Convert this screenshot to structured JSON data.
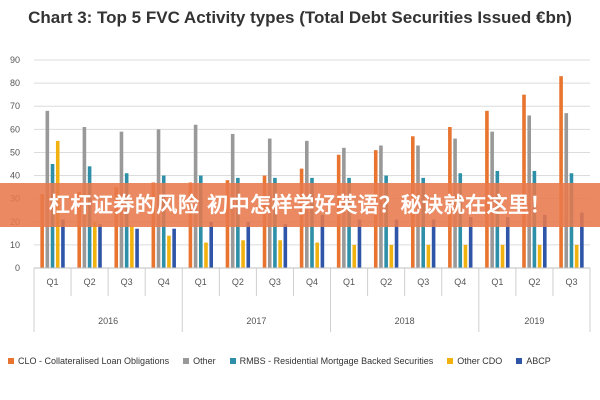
{
  "banner": {
    "text": "杠杆证券的风险 初中怎样学好英语？秘诀就在这里！"
  },
  "chart_data": {
    "type": "bar",
    "title": "Chart 3: Top 5 FVC Activity types (Total Debt Securities Issued €bn)",
    "xlabel": "",
    "ylabel": "",
    "ylim": [
      0,
      90
    ],
    "y_ticks": [
      0,
      10,
      20,
      30,
      40,
      50,
      60,
      70,
      80,
      90
    ],
    "grid": true,
    "legend_position": "bottom",
    "categories": [
      "Q1",
      "Q2",
      "Q3",
      "Q4",
      "Q1",
      "Q2",
      "Q3",
      "Q4",
      "Q1",
      "Q2",
      "Q3",
      "Q4",
      "Q1",
      "Q2",
      "Q3"
    ],
    "groups": [
      {
        "label": "2016",
        "count": 4
      },
      {
        "label": "2017",
        "count": 4
      },
      {
        "label": "2018",
        "count": 4
      },
      {
        "label": "2019",
        "count": 3
      }
    ],
    "series": [
      {
        "name": "CLO - Collateralised Loan Obligations",
        "color": "#e8742f",
        "values": [
          32,
          33,
          35,
          37,
          37,
          38,
          40,
          43,
          49,
          51,
          57,
          61,
          68,
          75,
          83
        ]
      },
      {
        "name": "Other",
        "color": "#999999",
        "values": [
          68,
          61,
          59,
          60,
          62,
          58,
          56,
          55,
          52,
          53,
          53,
          56,
          59,
          66,
          67
        ]
      },
      {
        "name": "RMBS - Residential Mortgage Backed Securities",
        "color": "#2e8fa8",
        "values": [
          45,
          44,
          41,
          40,
          40,
          39,
          39,
          39,
          39,
          40,
          39,
          41,
          42,
          42,
          41
        ]
      },
      {
        "name": "Other CDO",
        "color": "#f1b20f",
        "values": [
          55,
          20,
          18,
          14,
          11,
          12,
          12,
          11,
          10,
          10,
          10,
          10,
          10,
          10,
          10
        ]
      },
      {
        "name": "ABCP",
        "color": "#2f55a8",
        "values": [
          21,
          19,
          17,
          17,
          20,
          20,
          19,
          23,
          21,
          21,
          21,
          22,
          22,
          23,
          24
        ]
      }
    ]
  }
}
